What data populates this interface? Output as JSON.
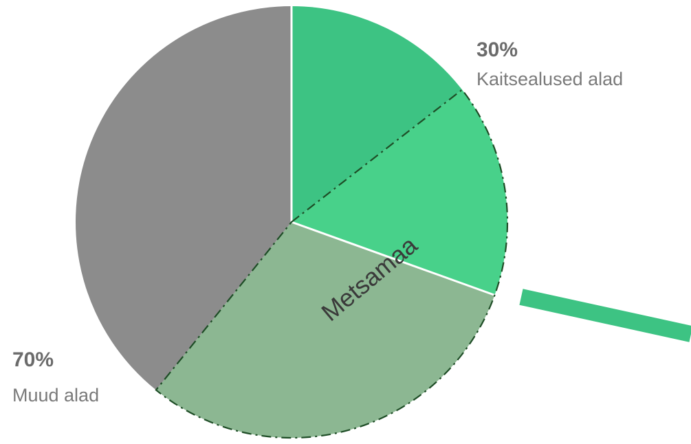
{
  "chart_data": {
    "type": "pie",
    "title": "",
    "slices": [
      {
        "label": "",
        "value": 14.5,
        "color": "#3dc383"
      },
      {
        "label": "",
        "value": 16.0,
        "color": "#48d18a"
      },
      {
        "label": "",
        "value": 30.3,
        "color": "#8cb792"
      },
      {
        "label": "",
        "value": 39.2,
        "color": "#8c8c8c"
      }
    ],
    "groups": [
      {
        "name": "Kaitsealused alad",
        "percent": "30%",
        "slices": [
          0,
          1
        ]
      },
      {
        "name": "Muud alad",
        "percent": "70%",
        "slices": [
          2,
          3
        ]
      }
    ],
    "annotations": {
      "forest_label": "Metsamaa",
      "protected": {
        "percent": "30%",
        "label": "Kaitsealused alad"
      },
      "other": {
        "percent": "70%",
        "label": "Muud alad"
      }
    },
    "forest_outline": {
      "style": "dash-dot",
      "color": "#1e4d26"
    },
    "connector": {
      "color": "#3dc383"
    }
  }
}
